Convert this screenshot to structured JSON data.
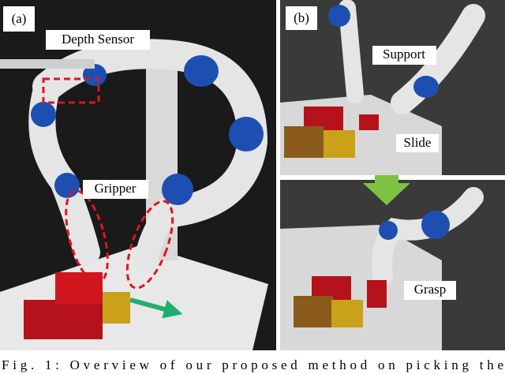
{
  "figure": {
    "panel_a": {
      "label": "(a)",
      "annotations": [
        "Depth Sensor",
        "Gripper"
      ]
    },
    "panel_b": {
      "label": "(b)",
      "annotations": [
        "Support",
        "Slide",
        "Grasp"
      ]
    },
    "caption": "Fig. 1: Overview of our proposed method on picking the"
  }
}
